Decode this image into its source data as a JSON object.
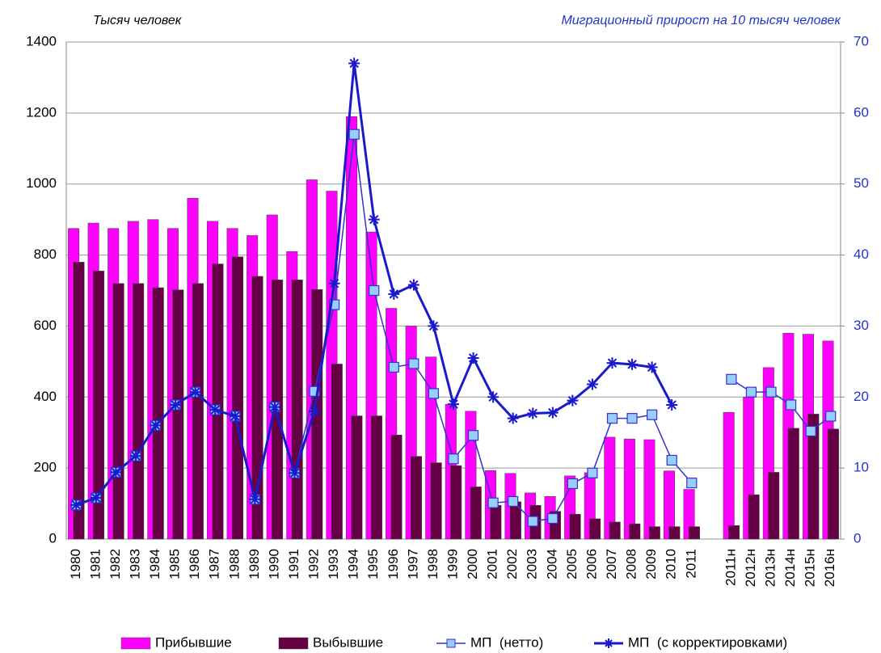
{
  "chart_data": {
    "type": "bar",
    "y_title": "Тысяч человек",
    "y2_title": "Миграционный прирост на 10 тысяч человек",
    "categories": [
      "1980",
      "1981",
      "1982",
      "1983",
      "1984",
      "1985",
      "1986",
      "1987",
      "1988",
      "1989",
      "1990",
      "1991",
      "1992",
      "1993",
      "1994",
      "1995",
      "1996",
      "1997",
      "1998",
      "1999",
      "2000",
      "2001",
      "2002",
      "2003",
      "2004",
      "2005",
      "2006",
      "2007",
      "2008",
      "2009",
      "2010",
      "2011",
      null,
      "2011н",
      "2012н",
      "2013н",
      "2014н",
      "2015н",
      "2016н"
    ],
    "ylim": [
      0,
      1400
    ],
    "yticks": [
      0,
      200,
      400,
      600,
      800,
      1000,
      1200,
      1400
    ],
    "y2lim": [
      0,
      70
    ],
    "y2ticks": [
      0,
      10,
      20,
      30,
      40,
      50,
      60,
      70
    ],
    "grid": true,
    "series": [
      {
        "name": "Прибывшие",
        "type": "bar",
        "color": "#ff00ff",
        "values": [
          875,
          890,
          875,
          895,
          900,
          875,
          960,
          895,
          875,
          855,
          913,
          810,
          1012,
          980,
          1190,
          865,
          650,
          600,
          513,
          380,
          360,
          193,
          185,
          130,
          120,
          178,
          187,
          287,
          282,
          280,
          192,
          140,
          null,
          357,
          400,
          483,
          580,
          577,
          558
        ]
      },
      {
        "name": "Выбывшие",
        "type": "bar",
        "color": "#660044",
        "values": [
          780,
          755,
          720,
          720,
          708,
          702,
          720,
          775,
          795,
          740,
          730,
          730,
          703,
          493,
          347,
          347,
          293,
          233,
          215,
          207,
          147,
          95,
          105,
          95,
          78,
          70,
          57,
          48,
          43,
          35,
          35,
          35,
          null,
          38,
          125,
          188,
          312,
          352,
          310
        ]
      },
      {
        "name": "МП  (нетто)",
        "type": "line",
        "axis": "y2",
        "color": "#3333cc",
        "marker": "square",
        "values": [
          4.8,
          5.8,
          9.4,
          11.7,
          16,
          18.9,
          20.7,
          18.2,
          17.3,
          5.6,
          18.6,
          9.3,
          20.8,
          33,
          57,
          35,
          24.2,
          24.7,
          20.5,
          11.3,
          14.6,
          5.1,
          5.3,
          2.5,
          2.9,
          7.8,
          9.3,
          17,
          17,
          17.5,
          11.1,
          7.9,
          null,
          22.5,
          20.7,
          20.7,
          18.9,
          15.2,
          17.3
        ]
      },
      {
        "name": "МП  (с корректировками)",
        "type": "line",
        "axis": "y2",
        "color": "#1a1acc",
        "marker": "star",
        "values": [
          4.8,
          5.8,
          9.4,
          11.7,
          16,
          18.9,
          20.7,
          18.2,
          17.3,
          5.6,
          18.6,
          9.3,
          18,
          36,
          67,
          45,
          34.5,
          35.8,
          30,
          19,
          25.5,
          20,
          17,
          17.7,
          17.8,
          19.5,
          21.8,
          24.8,
          24.6,
          24.2,
          18.9,
          null,
          null,
          null,
          null,
          null,
          null,
          null,
          null
        ]
      }
    ]
  }
}
